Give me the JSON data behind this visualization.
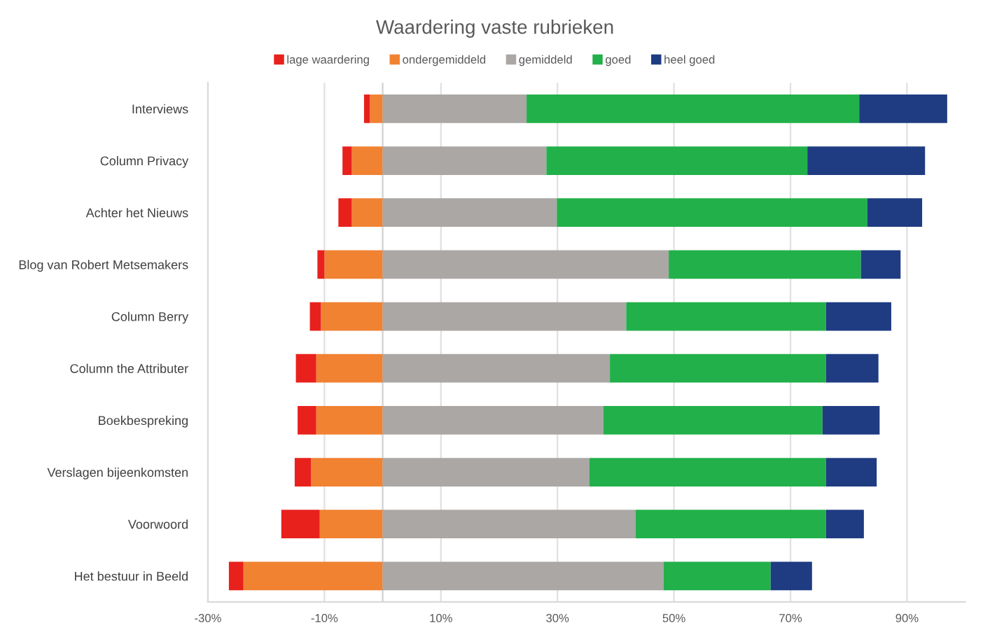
{
  "chart_data": {
    "type": "bar",
    "orientation": "horizontal",
    "stacked": true,
    "title": "Waardering vaste rubrieken",
    "categories": [
      "Interviews",
      "Column Privacy",
      "Achter het Nieuws",
      "Blog van Robert Metsemakers",
      "Column Berry",
      "Column the Attributer",
      "Boekbespreking",
      "Verslagen bijeenkomsten",
      "Voorwoord",
      "Het bestuur in Beeld"
    ],
    "series": [
      {
        "name": "lage waardering",
        "color": "#e8211d",
        "values": [
          -1.0,
          -1.6,
          -2.3,
          -1.2,
          -1.9,
          -3.5,
          -3.2,
          -2.8,
          -6.6,
          -2.5
        ]
      },
      {
        "name": "ondergemiddeld",
        "color": "#f08232",
        "values": [
          -2.2,
          -5.3,
          -5.3,
          -10.0,
          -10.6,
          -11.4,
          -11.4,
          -12.3,
          -10.8,
          -23.9
        ]
      },
      {
        "name": "gemiddeld",
        "color": "#aaa7a5",
        "values": [
          24.7,
          28.1,
          29.9,
          49.1,
          41.8,
          39.0,
          37.9,
          35.5,
          43.4,
          48.2
        ]
      },
      {
        "name": "goed",
        "color": "#22b04a",
        "values": [
          57.1,
          44.8,
          53.3,
          33.0,
          34.3,
          37.1,
          37.6,
          40.6,
          32.7,
          18.4
        ]
      },
      {
        "name": "heel goed",
        "color": "#1f3c82",
        "values": [
          15.1,
          20.2,
          9.4,
          6.8,
          11.2,
          9.0,
          9.8,
          8.7,
          6.5,
          7.1
        ]
      }
    ],
    "xlim": [
      -30,
      100
    ],
    "xticks": [
      {
        "value": -30,
        "label": "-30%"
      },
      {
        "value": -10,
        "label": "-10%"
      },
      {
        "value": 10,
        "label": "10%"
      },
      {
        "value": 30,
        "label": "30%"
      },
      {
        "value": 50,
        "label": "50%"
      },
      {
        "value": 70,
        "label": "70%"
      },
      {
        "value": 90,
        "label": "90%"
      }
    ],
    "grid": "x",
    "legend": "top"
  }
}
